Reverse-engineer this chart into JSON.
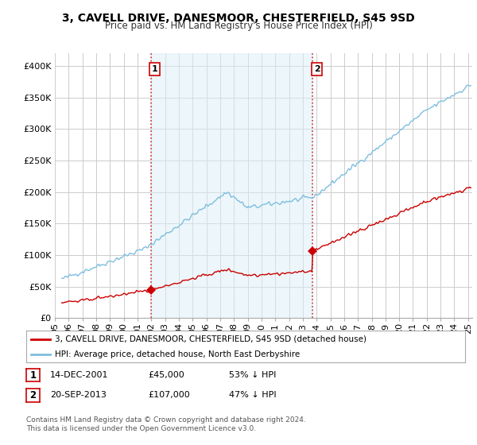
{
  "title": "3, CAVELL DRIVE, DANESMOOR, CHESTERFIELD, S45 9SD",
  "subtitle": "Price paid vs. HM Land Registry's House Price Index (HPI)",
  "title_fontsize": 10,
  "subtitle_fontsize": 8.5,
  "ylabel_ticks": [
    "£0",
    "£50K",
    "£100K",
    "£150K",
    "£200K",
    "£250K",
    "£300K",
    "£350K",
    "£400K"
  ],
  "ytick_values": [
    0,
    50000,
    100000,
    150000,
    200000,
    250000,
    300000,
    350000,
    400000
  ],
  "ylim": [
    0,
    420000
  ],
  "xlim_start": 1995.5,
  "xlim_end": 2025.3,
  "sale1_date": 2001.96,
  "sale1_price": 45000,
  "sale2_date": 2013.72,
  "sale2_price": 107000,
  "hpi_color": "#7fbfdf",
  "hpi_fill_color": "#dceef7",
  "price_color": "#cc0000",
  "vline_color": "#cc0000",
  "legend_label_price": "3, CAVELL DRIVE, DANESMOOR, CHESTERFIELD, S45 9SD (detached house)",
  "legend_label_hpi": "HPI: Average price, detached house, North East Derbyshire",
  "table_rows": [
    [
      "1",
      "14-DEC-2001",
      "£45,000",
      "53% ↓ HPI"
    ],
    [
      "2",
      "20-SEP-2013",
      "£107,000",
      "47% ↓ HPI"
    ]
  ],
  "footer_text": "Contains HM Land Registry data © Crown copyright and database right 2024.\nThis data is licensed under the Open Government Licence v3.0.",
  "bg_color": "#ffffff",
  "grid_color": "#cccccc"
}
